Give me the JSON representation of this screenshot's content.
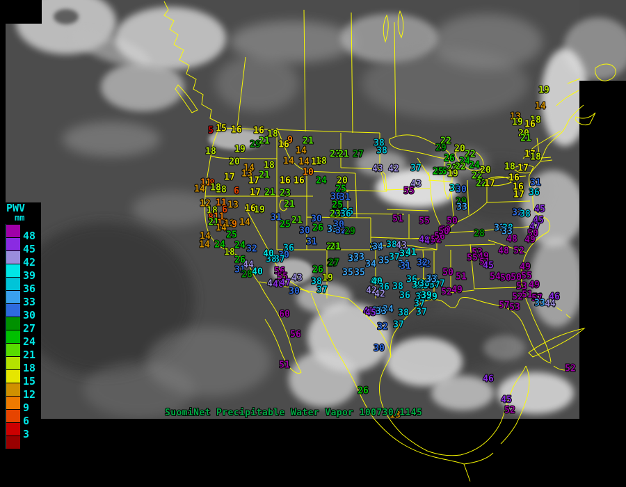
{
  "caption": {
    "text": "SuomiNet Precipitable Water Vapor 100730/1145"
  },
  "colors": {
    "background": "#000000",
    "map_outline": "#ffff00",
    "caption_green": "#00aa44",
    "legend_text": "#00e4e4"
  },
  "legend": {
    "title": "PWV",
    "unit": "mm",
    "labels": [
      "48",
      "45",
      "42",
      "39",
      "36",
      "33",
      "30",
      "27",
      "24",
      "21",
      "18",
      "15",
      "12",
      "9",
      "6",
      "3"
    ]
  },
  "color_scale": [
    {
      "min": 48,
      "color": "#a000a8"
    },
    {
      "min": 45,
      "color": "#8a2be2"
    },
    {
      "min": 42,
      "color": "#9a8cdc"
    },
    {
      "min": 39,
      "color": "#00e6e6"
    },
    {
      "min": 36,
      "color": "#00c4d8"
    },
    {
      "min": 33,
      "color": "#3aa0ee"
    },
    {
      "min": 30,
      "color": "#2e6ade"
    },
    {
      "min": 27,
      "color": "#009000"
    },
    {
      "min": 24,
      "color": "#00c000"
    },
    {
      "min": 21,
      "color": "#58dc00"
    },
    {
      "min": 18,
      "color": "#b4e200"
    },
    {
      "min": 15,
      "color": "#e6e600"
    },
    {
      "min": 12,
      "color": "#d09000"
    },
    {
      "min": 9,
      "color": "#ee7a00"
    },
    {
      "min": 6,
      "color": "#e64400"
    },
    {
      "min": 3,
      "color": "#cc0000"
    },
    {
      "min": 0,
      "color": "#990000"
    }
  ],
  "stations": [
    [
      303,
      188,
      5
    ],
    [
      318,
      185,
      15
    ],
    [
      340,
      187,
      16
    ],
    [
      372,
      188,
      16
    ],
    [
      392,
      193,
      18
    ],
    [
      367,
      208,
      29
    ],
    [
      380,
      203,
      21
    ],
    [
      417,
      202,
      9
    ],
    [
      408,
      208,
      16
    ],
    [
      443,
      203,
      21
    ],
    [
      433,
      217,
      14
    ],
    [
      345,
      215,
      19
    ],
    [
      303,
      218,
      18
    ],
    [
      337,
      233,
      20
    ],
    [
      358,
      242,
      14
    ],
    [
      355,
      250,
      13
    ],
    [
      387,
      238,
      18
    ],
    [
      380,
      252,
      21
    ],
    [
      365,
      260,
      17
    ],
    [
      415,
      232,
      14
    ],
    [
      437,
      233,
      14
    ],
    [
      455,
      233,
      16
    ],
    [
      462,
      232,
      18
    ],
    [
      443,
      248,
      10
    ],
    [
      410,
      260,
      16
    ],
    [
      430,
      260,
      16
    ],
    [
      462,
      260,
      24
    ],
    [
      330,
      255,
      17
    ],
    [
      318,
      273,
      18
    ],
    [
      340,
      275,
      6
    ],
    [
      367,
      277,
      17
    ],
    [
      388,
      277,
      21
    ],
    [
      410,
      278,
      23
    ],
    [
      296,
      263,
      11
    ],
    [
      305,
      264,
      8
    ],
    [
      287,
      272,
      14
    ],
    [
      310,
      270,
      18
    ],
    [
      295,
      293,
      12
    ],
    [
      318,
      292,
      11
    ],
    [
      335,
      295,
      13
    ],
    [
      305,
      303,
      18
    ],
    [
      323,
      302,
      6
    ],
    [
      360,
      300,
      16
    ],
    [
      373,
      302,
      19
    ],
    [
      303,
      313,
      8
    ],
    [
      315,
      312,
      11
    ],
    [
      307,
      320,
      21
    ],
    [
      320,
      321,
      11
    ],
    [
      330,
      322,
      13
    ],
    [
      337,
      323,
      9
    ],
    [
      318,
      328,
      14
    ],
    [
      352,
      320,
      14
    ],
    [
      295,
      340,
      14
    ],
    [
      333,
      338,
      25
    ],
    [
      294,
      352,
      14
    ],
    [
      316,
      352,
      24
    ],
    [
      345,
      353,
      24
    ],
    [
      362,
      358,
      32
    ],
    [
      330,
      363,
      18
    ],
    [
      345,
      374,
      26
    ],
    [
      357,
      381,
      44
    ],
    [
      345,
      388,
      31
    ],
    [
      355,
      395,
      28
    ],
    [
      370,
      391,
      40
    ],
    [
      416,
      294,
      21
    ],
    [
      397,
      313,
      31
    ],
    [
      410,
      323,
      25
    ],
    [
      427,
      317,
      21
    ],
    [
      455,
      315,
      30
    ],
    [
      457,
      328,
      26
    ],
    [
      438,
      332,
      30
    ],
    [
      485,
      296,
      28
    ],
    [
      485,
      308,
      32
    ],
    [
      500,
      305,
      36
    ],
    [
      487,
      323,
      30
    ],
    [
      478,
      330,
      33
    ],
    [
      490,
      332,
      32
    ],
    [
      503,
      333,
      29
    ],
    [
      448,
      348,
      31
    ],
    [
      477,
      355,
      21
    ],
    [
      415,
      357,
      36
    ],
    [
      408,
      367,
      30
    ],
    [
      402,
      373,
      37
    ],
    [
      390,
      373,
      38
    ],
    [
      386,
      365,
      40
    ],
    [
      402,
      390,
      56
    ],
    [
      406,
      398,
      55
    ],
    [
      427,
      400,
      43
    ],
    [
      392,
      408,
      44
    ],
    [
      400,
      409,
      46
    ],
    [
      410,
      407,
      47
    ],
    [
      457,
      388,
      26
    ],
    [
      478,
      379,
      27
    ],
    [
      455,
      405,
      38
    ],
    [
      471,
      400,
      19
    ],
    [
      463,
      417,
      37
    ],
    [
      423,
      419,
      30
    ],
    [
      508,
      372,
      33
    ],
    [
      516,
      370,
      33
    ],
    [
      533,
      380,
      34
    ],
    [
      540,
      356,
      34
    ],
    [
      517,
      392,
      35
    ],
    [
      500,
      392,
      35
    ],
    [
      540,
      405,
      40
    ],
    [
      534,
      418,
      42
    ],
    [
      482,
      222,
      23
    ],
    [
      494,
      222,
      21
    ],
    [
      515,
      222,
      27
    ],
    [
      545,
      206,
      38
    ],
    [
      549,
      217,
      38
    ],
    [
      543,
      243,
      43
    ],
    [
      566,
      243,
      42
    ],
    [
      598,
      242,
      37
    ],
    [
      635,
      247,
      25
    ],
    [
      492,
      260,
      20
    ],
    [
      598,
      265,
      43
    ],
    [
      588,
      275,
      55
    ],
    [
      490,
      272,
      25
    ],
    [
      483,
      283,
      30
    ],
    [
      496,
      284,
      31
    ],
    [
      485,
      295,
      25
    ],
    [
      482,
      308,
      23
    ],
    [
      497,
      308,
      36
    ],
    [
      572,
      315,
      51
    ],
    [
      610,
      318,
      55
    ],
    [
      650,
      318,
      50
    ],
    [
      641,
      203,
      22
    ],
    [
      634,
      213,
      29
    ],
    [
      661,
      214,
      20
    ],
    [
      676,
      222,
      22
    ],
    [
      646,
      228,
      26
    ],
    [
      668,
      232,
      24
    ],
    [
      682,
      238,
      24
    ],
    [
      650,
      242,
      23
    ],
    [
      662,
      240,
      22
    ],
    [
      651,
      250,
      19
    ],
    [
      630,
      247,
      25
    ],
    [
      686,
      253,
      22
    ],
    [
      698,
      245,
      20
    ],
    [
      692,
      264,
      22
    ],
    [
      704,
      264,
      17
    ],
    [
      654,
      271,
      39
    ],
    [
      663,
      273,
      30
    ],
    [
      663,
      290,
      29
    ],
    [
      664,
      298,
      33
    ],
    [
      753,
      192,
      20
    ],
    [
      756,
      199,
      21
    ],
    [
      782,
      130,
      19
    ],
    [
      777,
      153,
      14
    ],
    [
      741,
      168,
      13
    ],
    [
      744,
      176,
      19
    ],
    [
      770,
      173,
      18
    ],
    [
      762,
      179,
      16
    ],
    [
      762,
      222,
      17
    ],
    [
      770,
      226,
      18
    ],
    [
      733,
      240,
      18
    ],
    [
      752,
      242,
      17
    ],
    [
      739,
      256,
      16
    ],
    [
      745,
      269,
      16
    ],
    [
      746,
      280,
      17
    ],
    [
      770,
      263,
      31
    ],
    [
      768,
      277,
      36
    ],
    [
      744,
      306,
      32
    ],
    [
      755,
      308,
      38
    ],
    [
      776,
      301,
      45
    ],
    [
      774,
      317,
      45
    ],
    [
      769,
      326,
      47
    ],
    [
      718,
      328,
      33
    ],
    [
      730,
      328,
      38
    ],
    [
      766,
      336,
      50
    ],
    [
      736,
      344,
      48
    ],
    [
      762,
      345,
      49
    ],
    [
      724,
      361,
      48
    ],
    [
      746,
      361,
      52
    ],
    [
      640,
      331,
      50
    ],
    [
      689,
      336,
      28
    ],
    [
      729,
      333,
      33
    ],
    [
      686,
      363,
      53
    ],
    [
      679,
      371,
      55
    ],
    [
      695,
      369,
      49
    ],
    [
      697,
      377,
      51
    ],
    [
      702,
      382,
      45
    ],
    [
      611,
      380,
      32
    ],
    [
      644,
      392,
      50
    ],
    [
      663,
      398,
      51
    ],
    [
      712,
      398,
      54
    ],
    [
      727,
      400,
      50
    ],
    [
      742,
      399,
      50
    ],
    [
      757,
      397,
      55
    ],
    [
      755,
      384,
      49
    ],
    [
      622,
      401,
      33
    ],
    [
      603,
      411,
      39
    ],
    [
      616,
      411,
      38
    ],
    [
      632,
      408,
      37
    ],
    [
      750,
      412,
      53
    ],
    [
      768,
      410,
      49
    ],
    [
      642,
      420,
      52
    ],
    [
      657,
      417,
      49
    ],
    [
      744,
      427,
      52
    ],
    [
      758,
      424,
      51
    ],
    [
      773,
      428,
      51
    ],
    [
      608,
      426,
      37
    ],
    [
      621,
      427,
      39
    ],
    [
      725,
      439,
      57
    ],
    [
      740,
      442,
      53
    ],
    [
      772,
      429,
      57
    ],
    [
      797,
      427,
      46
    ],
    [
      776,
      436,
      33
    ],
    [
      791,
      437,
      44
    ],
    [
      606,
      449,
      37
    ],
    [
      543,
      355,
      34
    ],
    [
      563,
      352,
      38
    ],
    [
      577,
      353,
      43
    ],
    [
      580,
      362,
      44
    ],
    [
      582,
      365,
      39
    ],
    [
      591,
      363,
      41
    ],
    [
      610,
      345,
      46
    ],
    [
      618,
      347,
      45
    ],
    [
      627,
      345,
      52
    ],
    [
      632,
      340,
      56
    ],
    [
      638,
      333,
      50
    ],
    [
      607,
      378,
      32
    ],
    [
      482,
      355,
      21
    ],
    [
      480,
      378,
      27
    ],
    [
      552,
      375,
      35
    ],
    [
      567,
      370,
      37
    ],
    [
      580,
      380,
      34
    ],
    [
      583,
      383,
      31
    ],
    [
      542,
      405,
      40
    ],
    [
      552,
      413,
      36
    ],
    [
      572,
      412,
      38
    ],
    [
      592,
      402,
      36
    ],
    [
      600,
      410,
      39
    ],
    [
      610,
      408,
      38
    ],
    [
      625,
      410,
      37
    ],
    [
      620,
      402,
      33
    ],
    [
      582,
      425,
      36
    ],
    [
      605,
      427,
      37
    ],
    [
      613,
      425,
      39
    ],
    [
      603,
      437,
      37
    ],
    [
      530,
      448,
      45
    ],
    [
      543,
      447,
      33
    ],
    [
      558,
      445,
      34
    ],
    [
      580,
      450,
      38
    ],
    [
      573,
      467,
      37
    ],
    [
      550,
      470,
      32
    ],
    [
      409,
      452,
      60
    ],
    [
      425,
      481,
      56
    ],
    [
      409,
      525,
      51
    ],
    [
      545,
      501,
      30
    ],
    [
      522,
      562,
      26
    ],
    [
      533,
      450,
      45
    ],
    [
      548,
      448,
      33
    ],
    [
      546,
      423,
      42
    ],
    [
      568,
      597,
      13
    ],
    [
      820,
      530,
      52
    ],
    [
      702,
      545,
      46
    ],
    [
      728,
      575,
      45
    ],
    [
      733,
      590,
      52
    ]
  ]
}
